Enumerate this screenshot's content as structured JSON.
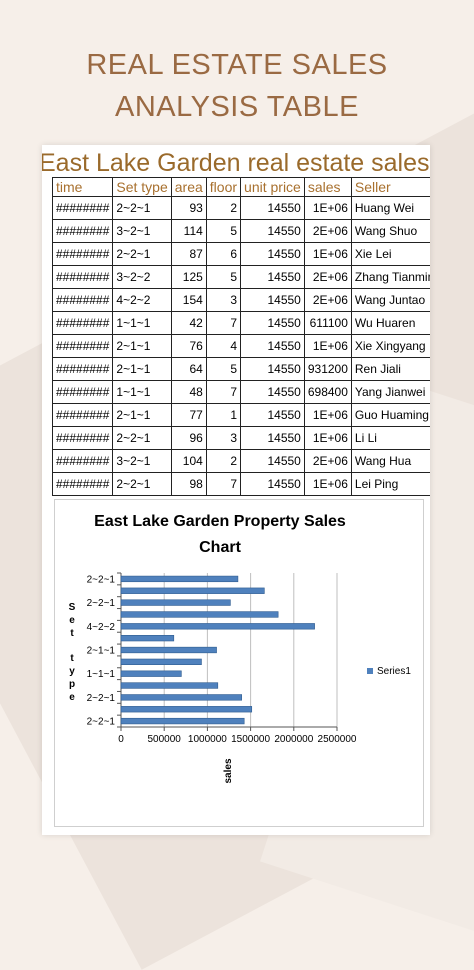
{
  "page": {
    "title_line1": "REAL ESTATE SALES",
    "title_line2": "ANALYSIS TABLE"
  },
  "sheet": {
    "title": "East Lake Garden real estate sales li",
    "headers": [
      "time",
      "Set type",
      "area",
      "floor",
      "unit price",
      "sales",
      "Seller"
    ],
    "rows": [
      [
        "########",
        "2~2~1",
        "93",
        "2",
        "14550",
        "1E+06",
        "Huang Wei"
      ],
      [
        "########",
        "3~2~1",
        "114",
        "5",
        "14550",
        "2E+06",
        "Wang Shuo"
      ],
      [
        "########",
        "2~2~1",
        "87",
        "6",
        "14550",
        "1E+06",
        "Xie Lei"
      ],
      [
        "########",
        "3~2~2",
        "125",
        "5",
        "14550",
        "2E+06",
        "Zhang Tianmin"
      ],
      [
        "########",
        "4~2~2",
        "154",
        "3",
        "14550",
        "2E+06",
        "Wang Juntao"
      ],
      [
        "########",
        "1~1~1",
        "42",
        "7",
        "14550",
        "611100",
        "Wu Huaren"
      ],
      [
        "########",
        "2~1~1",
        "76",
        "4",
        "14550",
        "1E+06",
        "Xie Xingyang"
      ],
      [
        "########",
        "2~1~1",
        "64",
        "5",
        "14550",
        "931200",
        "Ren Jiali"
      ],
      [
        "########",
        "1~1~1",
        "48",
        "7",
        "14550",
        "698400",
        "Yang Jianwei"
      ],
      [
        "########",
        "2~1~1",
        "77",
        "1",
        "14550",
        "1E+06",
        "Guo Huaming"
      ],
      [
        "########",
        "2~2~1",
        "96",
        "3",
        "14550",
        "1E+06",
        "Li Li"
      ],
      [
        "########",
        "3~2~1",
        "104",
        "2",
        "14550",
        "2E+06",
        "Wang Hua"
      ],
      [
        "########",
        "2~2~1",
        "98",
        "7",
        "14550",
        "1E+06",
        "Lei Ping"
      ]
    ]
  },
  "chart_data": {
    "type": "bar",
    "orientation": "horizontal",
    "title_line1": "East Lake Garden Property Sales",
    "title_line2": "Chart",
    "xlabel": "sales",
    "ylabel": "Set type",
    "xlim": [
      0,
      2500000
    ],
    "xticks": [
      "0",
      "500000",
      "1000000",
      "1500000",
      "2000000",
      "2500000"
    ],
    "ytick_labels": [
      "2~2~1",
      "2~2~1",
      "1~1~1",
      "2~1~1",
      "4~2~2",
      "2~2~1",
      "2~2~1"
    ],
    "categories": [
      "2~2~1",
      "3~2~1",
      "2~2~1",
      "2~1~1",
      "1~1~1",
      "2~1~1",
      "2~1~1",
      "1~1~1",
      "4~2~2",
      "3~2~2",
      "2~2~1",
      "3~2~1",
      "2~2~1"
    ],
    "series": [
      {
        "name": "Series1",
        "values": [
          1425900,
          1513200,
          1396800,
          1120350,
          698400,
          931200,
          1105800,
          611100,
          2240700,
          1818750,
          1265850,
          1658700,
          1353150
        ]
      }
    ],
    "bar_color": "#4f81bd",
    "legend_position": "right",
    "grid": true
  }
}
